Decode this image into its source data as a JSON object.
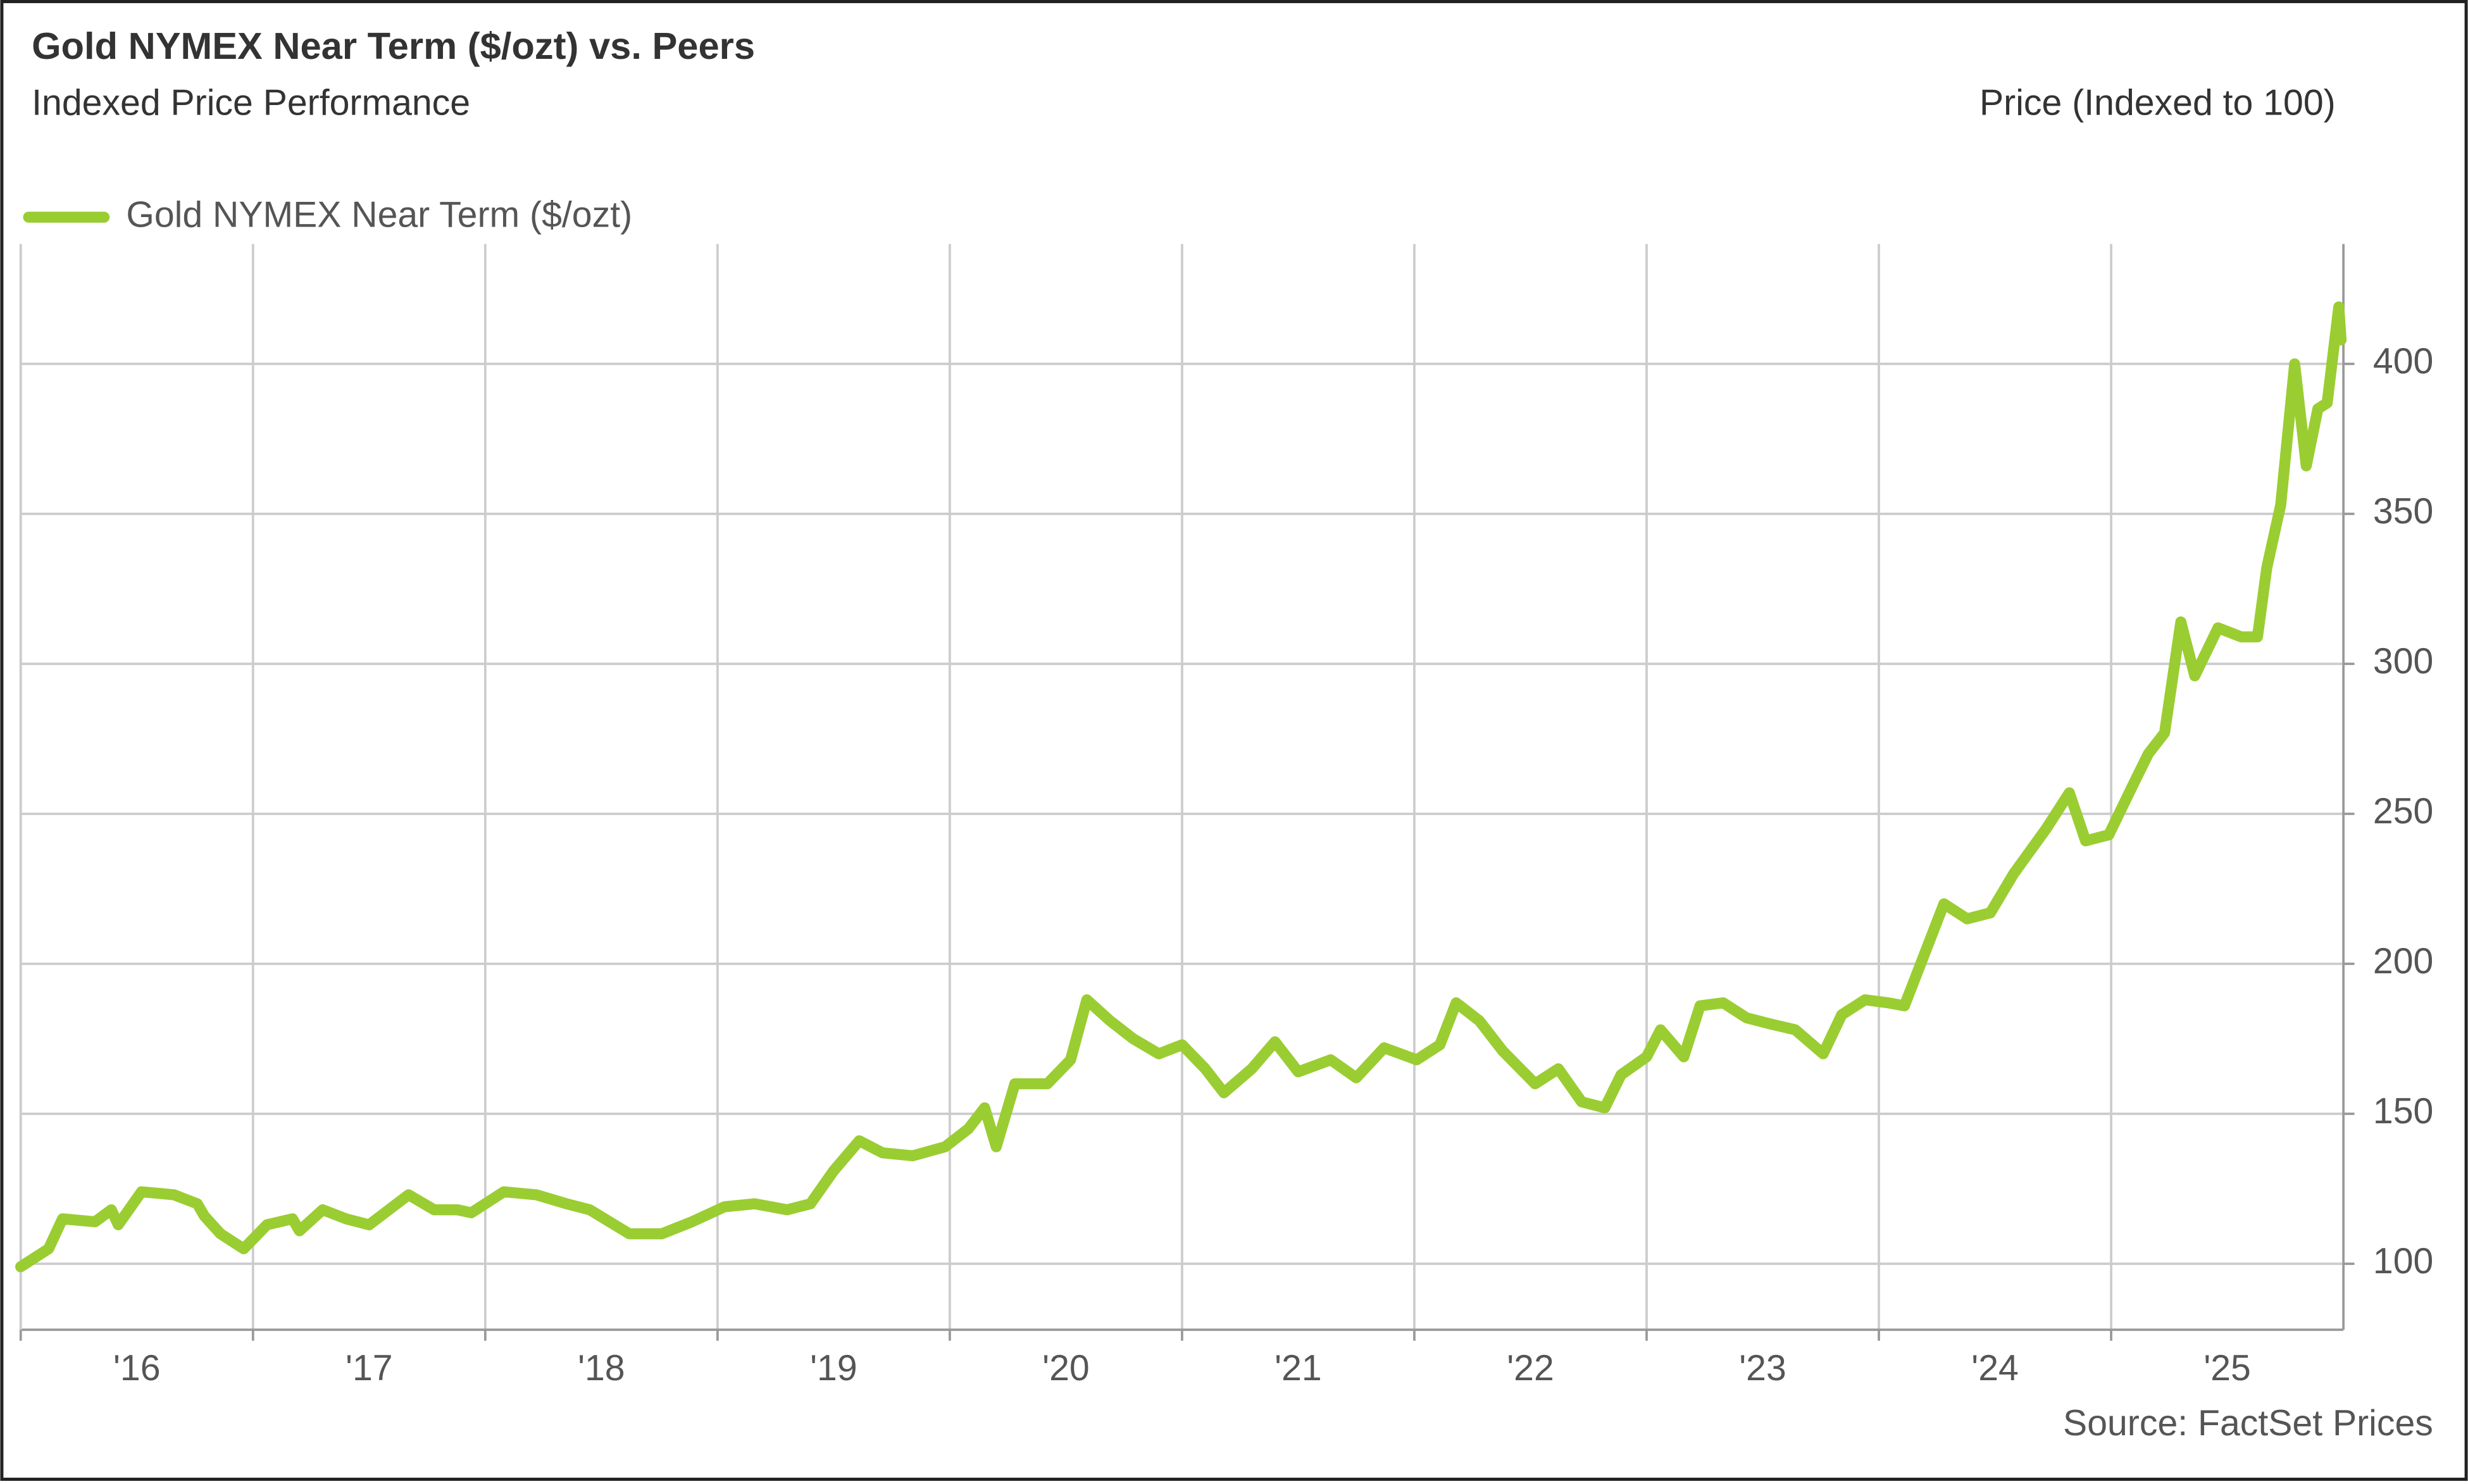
{
  "chart_data": {
    "type": "line",
    "title": "Gold NYMEX Near Term ($/ozt) vs. Peers",
    "subtitle": "Indexed Price Performance",
    "y_axis_label": "Price (Indexed to 100)",
    "source": "Source: FactSet Prices",
    "legend": "top-left",
    "grid": true,
    "xlim": [
      2016,
      2026
    ],
    "xticks": [
      {
        "value": 2016,
        "label": "'16"
      },
      {
        "value": 2017,
        "label": "'17"
      },
      {
        "value": 2018,
        "label": "'18"
      },
      {
        "value": 2019,
        "label": "'19"
      },
      {
        "value": 2020,
        "label": "'20"
      },
      {
        "value": 2021,
        "label": "'21"
      },
      {
        "value": 2022,
        "label": "'22"
      },
      {
        "value": 2023,
        "label": "'23"
      },
      {
        "value": 2024,
        "label": "'24"
      },
      {
        "value": 2025,
        "label": "'25"
      }
    ],
    "ylim": [
      78,
      440
    ],
    "yticks": [
      100,
      150,
      200,
      250,
      300,
      350,
      400
    ],
    "x": [
      2016.0,
      2016.12,
      2016.18,
      2016.32,
      2016.39,
      2016.42,
      2016.52,
      2016.66,
      2016.76,
      2016.79,
      2016.86,
      2016.96,
      2017.06,
      2017.17,
      2017.2,
      2017.3,
      2017.4,
      2017.5,
      2017.67,
      2017.78,
      2017.88,
      2017.94,
      2018.08,
      2018.22,
      2018.35,
      2018.45,
      2018.62,
      2018.76,
      2018.89,
      2019.03,
      2019.16,
      2019.3,
      2019.4,
      2019.5,
      2019.61,
      2019.71,
      2019.84,
      2019.98,
      2020.08,
      2020.15,
      2020.2,
      2020.28,
      2020.42,
      2020.52,
      2020.59,
      2020.69,
      2020.79,
      2020.9,
      2021.0,
      2021.1,
      2021.18,
      2021.3,
      2021.4,
      2021.5,
      2021.64,
      2021.75,
      2021.87,
      2022.01,
      2022.11,
      2022.18,
      2022.28,
      2022.38,
      2022.52,
      2022.62,
      2022.72,
      2022.82,
      2022.89,
      2023.0,
      2023.06,
      2023.16,
      2023.23,
      2023.33,
      2023.43,
      2023.53,
      2023.64,
      2023.76,
      2023.84,
      2023.94,
      2024.04,
      2024.11,
      2024.18,
      2024.28,
      2024.38,
      2024.48,
      2024.58,
      2024.72,
      2024.82,
      2024.89,
      2024.99,
      2025.09,
      2025.16,
      2025.23,
      2025.3,
      2025.36,
      2025.46,
      2025.56,
      2025.63,
      2025.67,
      2025.73,
      2025.79,
      2025.84,
      2025.89,
      2025.93,
      2025.98,
      2025.99
    ],
    "series": [
      {
        "name": "Gold NYMEX Near Term ($/ozt)",
        "color": "#9acd32",
        "values": [
          99,
          105,
          115,
          114,
          118,
          113,
          124,
          123,
          120,
          116,
          110,
          105,
          113,
          115,
          111,
          118,
          115,
          113,
          123,
          118,
          118,
          117,
          124,
          123,
          120,
          118,
          110,
          110,
          114,
          119,
          120,
          118,
          120,
          131,
          141,
          137,
          136,
          139,
          145,
          152,
          139,
          160,
          160,
          168,
          188,
          181,
          175,
          170,
          173,
          165,
          157,
          165,
          174,
          164,
          168,
          162,
          172,
          168,
          173,
          187,
          181,
          171,
          160,
          165,
          154,
          152,
          163,
          169,
          178,
          169,
          186,
          187,
          182,
          180,
          178,
          170,
          183,
          188,
          187,
          186,
          200,
          220,
          215,
          217,
          230,
          245,
          257,
          241,
          243,
          259,
          270,
          277,
          314,
          296,
          312,
          309,
          309,
          332,
          353,
          400,
          366,
          385,
          387,
          419,
          408
        ]
      }
    ]
  }
}
